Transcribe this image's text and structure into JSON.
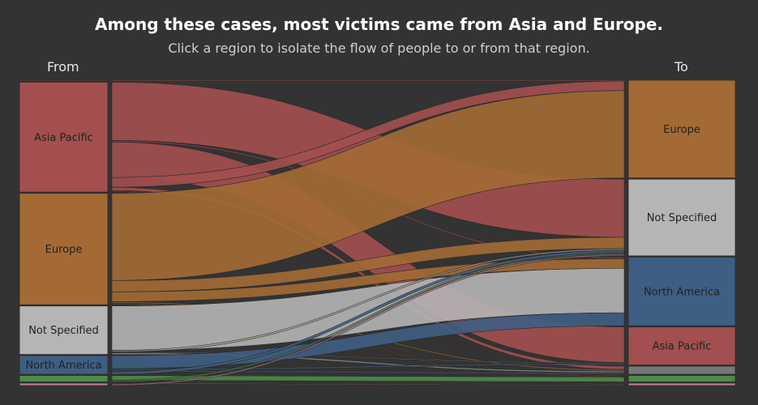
{
  "header": {
    "title": "Among these cases, most victims came from Asia and Europe.",
    "subtitle": "Click a region to isolate the flow of people to or from that region."
  },
  "columns": {
    "from_label": "From",
    "to_label": "To"
  },
  "chart_data": {
    "type": "sankey",
    "colors": {
      "Asia Pacific": "#a34f4f",
      "Europe": "#a36a35",
      "Not Specified": "#b5b5b5",
      "North America": "#3f5e83",
      "Other (green)": "#4e8a48",
      "Other (pink)": "#c47a9a",
      "Other (grey)": "#777777",
      "highlight": "#e8674f"
    },
    "sources": [
      {
        "name": "",
        "label": "",
        "value": 1,
        "color_key": "highlight"
      },
      {
        "name": "Asia Pacific",
        "label": "Asia Pacific",
        "value": 136,
        "color_key": "Asia Pacific"
      },
      {
        "name": "Europe",
        "label": "Europe",
        "value": 138,
        "color_key": "Europe"
      },
      {
        "name": "Not Specified",
        "label": "Not Specified",
        "value": 60,
        "color_key": "Not Specified"
      },
      {
        "name": "North America",
        "label": "North America",
        "value": 23,
        "color_key": "North America"
      },
      {
        "name": "",
        "label": "",
        "value": 8,
        "color_key": "Other (green)"
      },
      {
        "name": "",
        "label": "",
        "value": 3,
        "color_key": "Other (pink)"
      }
    ],
    "targets": [
      {
        "name": "Europe",
        "label": "Europe",
        "value": 121,
        "color_key": "Europe"
      },
      {
        "name": "Not Specified",
        "label": "Not Specified",
        "value": 95,
        "color_key": "Not Specified"
      },
      {
        "name": "North America",
        "label": "North America",
        "value": 85,
        "color_key": "North America"
      },
      {
        "name": "Asia Pacific",
        "label": "Asia Pacific",
        "value": 47,
        "color_key": "Asia Pacific"
      },
      {
        "name": "",
        "label": "",
        "value": 10,
        "color_key": "Other (grey)"
      },
      {
        "name": "",
        "label": "",
        "value": 8,
        "color_key": "Other (green)"
      },
      {
        "name": "",
        "label": "",
        "value": 3,
        "color_key": "Other (pink)"
      }
    ],
    "links": [
      {
        "source": 0,
        "target": 0,
        "value": 1
      },
      {
        "source": 1,
        "target": 1,
        "value": 72
      },
      {
        "source": 1,
        "target": 2,
        "value": 2
      },
      {
        "source": 1,
        "target": 3,
        "value": 44
      },
      {
        "source": 1,
        "target": 0,
        "value": 12
      },
      {
        "source": 1,
        "target": 4,
        "value": 4
      },
      {
        "source": 1,
        "target": 5,
        "value": 1
      },
      {
        "source": 1,
        "target": 6,
        "value": 1
      },
      {
        "source": 2,
        "target": 0,
        "value": 108
      },
      {
        "source": 2,
        "target": 1,
        "value": 14
      },
      {
        "source": 2,
        "target": 2,
        "value": 12
      },
      {
        "source": 2,
        "target": 4,
        "value": 2
      },
      {
        "source": 2,
        "target": 5,
        "value": 1
      },
      {
        "source": 2,
        "target": 6,
        "value": 1
      },
      {
        "source": 3,
        "target": 2,
        "value": 55
      },
      {
        "source": 3,
        "target": 1,
        "value": 2
      },
      {
        "source": 3,
        "target": 3,
        "value": 1
      },
      {
        "source": 3,
        "target": 4,
        "value": 2
      },
      {
        "source": 4,
        "target": 2,
        "value": 16
      },
      {
        "source": 4,
        "target": 3,
        "value": 2
      },
      {
        "source": 4,
        "target": 4,
        "value": 2
      },
      {
        "source": 4,
        "target": 1,
        "value": 3
      },
      {
        "source": 5,
        "target": 5,
        "value": 6
      },
      {
        "source": 5,
        "target": 1,
        "value": 2
      },
      {
        "source": 6,
        "target": 6,
        "value": 1
      },
      {
        "source": 6,
        "target": 1,
        "value": 2
      }
    ]
  }
}
